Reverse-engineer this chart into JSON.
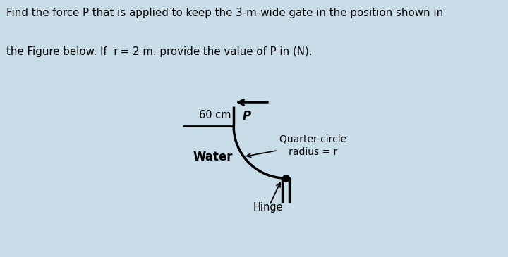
{
  "bg_color": "#c9dde8",
  "box_bg": "#ffffff",
  "box_border": "#000000",
  "label_60cm": "60 cm",
  "label_P": "P",
  "label_qc1": "Quarter circle",
  "label_qc2": "   radius = r",
  "label_water": "Water",
  "label_hinge": "Hinge",
  "title_line1": "Find the force P that is applied to keep the 3-m-wide gate in the position shown in",
  "title_line2": "the Figure below. If  r = 2 m. provide the value of P in (N).",
  "title_fontsize": 10.8,
  "label_fontsize": 10,
  "text_color": "#000000"
}
